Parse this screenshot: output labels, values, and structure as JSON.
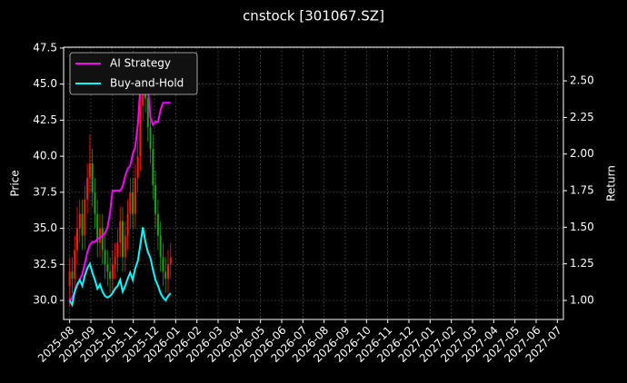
{
  "chart_data": {
    "type": "candlestick-returns",
    "title": "cnstock [301067.SZ]",
    "ylabel": "Price",
    "y2label": "Return",
    "x": [
      0,
      2.5,
      5,
      7.5,
      10,
      12.5,
      15,
      17.5,
      20,
      22.5,
      25,
      27.5,
      30,
      32.5,
      35,
      37.5,
      40,
      42.5,
      45,
      47.5,
      50,
      52.5,
      55,
      57.5,
      60,
      62.5,
      65,
      67.5,
      70,
      72.5,
      75,
      77.5,
      80,
      82.5,
      85,
      87.5,
      90,
      92.5,
      95,
      97.5,
      100
    ],
    "open": [
      31.0,
      32.0,
      31.5,
      33.5,
      35.0,
      36.0,
      34.5,
      37.0,
      38.5,
      39.5,
      37.5,
      36.0,
      34.0,
      35.0,
      33.5,
      32.5,
      32.0,
      31.5,
      32.5,
      33.0,
      34.0,
      35.5,
      33.0,
      34.5,
      36.0,
      37.5,
      36.0,
      38.5,
      40.0,
      43.5,
      45.5,
      44.0,
      42.0,
      40.5,
      38.0,
      36.0,
      34.5,
      33.0,
      32.0,
      31.5,
      32.5
    ],
    "high": [
      33,
      33,
      34.5,
      36.5,
      37,
      37,
      38,
      39.5,
      41.5,
      40.5,
      38.5,
      37,
      36,
      36,
      34.5,
      33.5,
      33,
      33.5,
      34,
      35,
      36.5,
      36.5,
      35.5,
      37,
      38.5,
      38.5,
      39.5,
      41,
      44.5,
      46.5,
      46.5,
      45,
      43,
      41.5,
      39,
      37,
      35.5,
      34,
      33,
      33.5,
      34
    ],
    "low": [
      29.6,
      30.5,
      30.5,
      32.5,
      34,
      33.5,
      33.5,
      36,
      37.5,
      36.5,
      35,
      33,
      33,
      32.5,
      31.5,
      31,
      30.5,
      30.5,
      31.5,
      32,
      33,
      32,
      32,
      33.5,
      35,
      35,
      35,
      37.5,
      39,
      42.5,
      43,
      41,
      39.5,
      37,
      35,
      33.5,
      32,
      31,
      30.5,
      30.5,
      31.5
    ],
    "close": [
      32.0,
      31.5,
      33.5,
      35.0,
      36.0,
      34.5,
      37.0,
      38.5,
      39.5,
      37.5,
      36.0,
      34.0,
      35.0,
      33.5,
      32.5,
      32.0,
      31.5,
      32.5,
      33.0,
      34.0,
      35.5,
      33.0,
      34.5,
      36.0,
      37.5,
      36.0,
      38.5,
      40.0,
      43.5,
      45.5,
      44.0,
      42.0,
      40.5,
      38.0,
      36.0,
      34.5,
      33.0,
      32.0,
      31.5,
      32.5,
      33.0
    ],
    "up_color": "#ff1a00",
    "down_color": "#1f9e1f",
    "series": [
      {
        "name": "AI Strategy",
        "color": "#ff00ff",
        "axis": "y2",
        "values": [
          1.0,
          1.02,
          1.06,
          1.1,
          1.14,
          1.18,
          1.25,
          1.33,
          1.38,
          1.4,
          1.4,
          1.42,
          1.43,
          1.44,
          1.46,
          1.5,
          1.6,
          1.75,
          1.75,
          1.75,
          1.75,
          1.78,
          1.85,
          1.9,
          1.92,
          2.0,
          2.05,
          2.2,
          2.45,
          2.6,
          2.55,
          2.45,
          2.25,
          2.2,
          2.22,
          2.22,
          2.3,
          2.35,
          2.35,
          2.35,
          2.35
        ]
      },
      {
        "name": "Buy-and-Hold",
        "color": "#00ffff",
        "axis": "y2",
        "values": [
          1.0,
          0.97,
          1.06,
          1.11,
          1.14,
          1.1,
          1.17,
          1.22,
          1.25,
          1.19,
          1.14,
          1.08,
          1.11,
          1.06,
          1.03,
          1.02,
          1.03,
          1.05,
          1.08,
          1.1,
          1.14,
          1.06,
          1.1,
          1.15,
          1.19,
          1.14,
          1.22,
          1.27,
          1.38,
          1.5,
          1.4,
          1.33,
          1.29,
          1.21,
          1.14,
          1.1,
          1.05,
          1.02,
          1.0,
          1.03,
          1.05
        ]
      }
    ],
    "xlim": [
      -6,
      489
    ],
    "xticks": [
      {
        "value": 0,
        "label": "2025-08"
      },
      {
        "value": 21,
        "label": "2025-09"
      },
      {
        "value": 42,
        "label": "2025-10"
      },
      {
        "value": 63,
        "label": "2025-11"
      },
      {
        "value": 84,
        "label": "2025-12"
      },
      {
        "value": 105,
        "label": "2026-01"
      },
      {
        "value": 126,
        "label": "2026-02"
      },
      {
        "value": 147,
        "label": "2026-03"
      },
      {
        "value": 168,
        "label": "2026-04"
      },
      {
        "value": 189,
        "label": "2026-05"
      },
      {
        "value": 210,
        "label": "2026-06"
      },
      {
        "value": 231,
        "label": "2026-07"
      },
      {
        "value": 252,
        "label": "2026-08"
      },
      {
        "value": 273,
        "label": "2026-09"
      },
      {
        "value": 294,
        "label": "2026-10"
      },
      {
        "value": 315,
        "label": "2026-11"
      },
      {
        "value": 336,
        "label": "2026-12"
      },
      {
        "value": 357,
        "label": "2027-01"
      },
      {
        "value": 378,
        "label": "2027-02"
      },
      {
        "value": 399,
        "label": "2027-03"
      },
      {
        "value": 420,
        "label": "2027-04"
      },
      {
        "value": 441,
        "label": "2027-05"
      },
      {
        "value": 462,
        "label": "2027-06"
      },
      {
        "value": 483,
        "label": "2027-07"
      }
    ],
    "ylim": [
      28.68,
      47.56
    ],
    "yticks": [
      {
        "value": 30,
        "label": "30.0"
      },
      32.5,
      {
        "value": 35,
        "label": "35.0"
      },
      37.5,
      {
        "value": 40,
        "label": "40.0"
      },
      42.5,
      {
        "value": 45,
        "label": "45.0"
      },
      47.5
    ],
    "y2lim": [
      0.87,
      2.73
    ],
    "y2ticks": [
      {
        "value": 1,
        "label": "1.00"
      },
      {
        "value": 1.25,
        "label": "1.25"
      },
      {
        "value": 1.5,
        "label": "1.50"
      },
      {
        "value": 1.75,
        "label": "1.75"
      },
      {
        "value": 2,
        "label": "2.00"
      },
      {
        "value": 2.25,
        "label": "2.25"
      },
      {
        "value": 2.5,
        "label": "2.50"
      }
    ],
    "grid": true,
    "legend": "upper left"
  }
}
